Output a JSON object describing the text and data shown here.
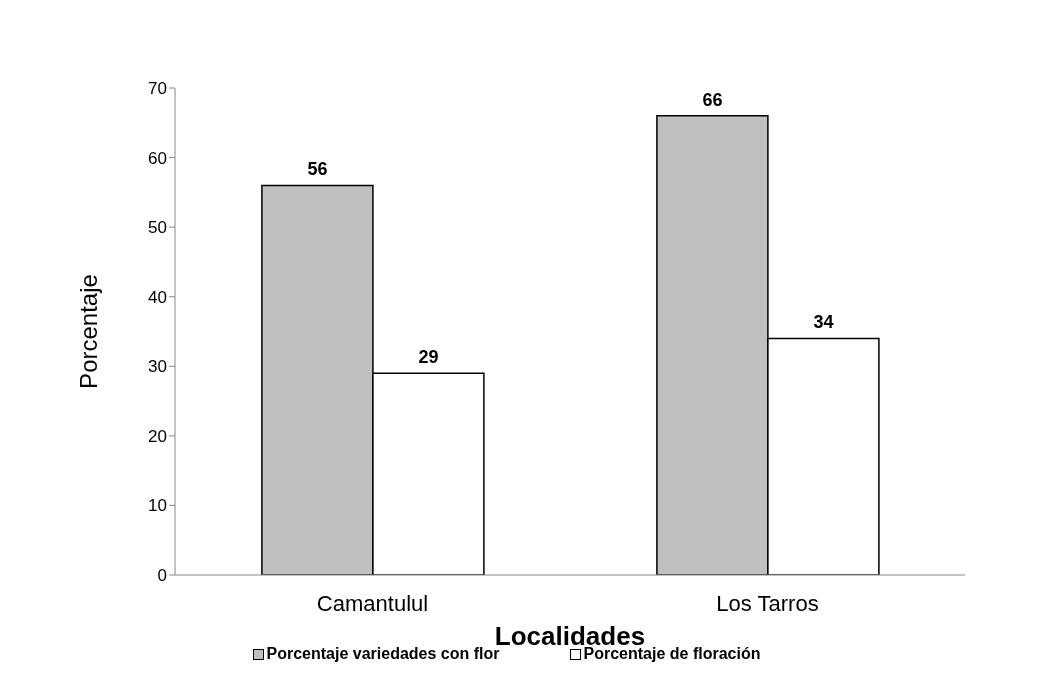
{
  "chart_data": {
    "type": "bar",
    "xlabel": "Localidades",
    "ylabel": "Porcentaje",
    "categories": [
      "Camantulul",
      "Los Tarros"
    ],
    "series": [
      {
        "name": "Porcentaje variedades con flor",
        "color": "#c0c0c0",
        "values": [
          56,
          66
        ]
      },
      {
        "name": "Porcentaje de floración",
        "color": "#ffffff",
        "values": [
          29,
          34
        ]
      }
    ],
    "ylim": [
      0,
      70
    ],
    "yticks": [
      0,
      10,
      20,
      30,
      40,
      50,
      60,
      70
    ],
    "grid": false,
    "legend": "bottom",
    "data_labels": true
  }
}
